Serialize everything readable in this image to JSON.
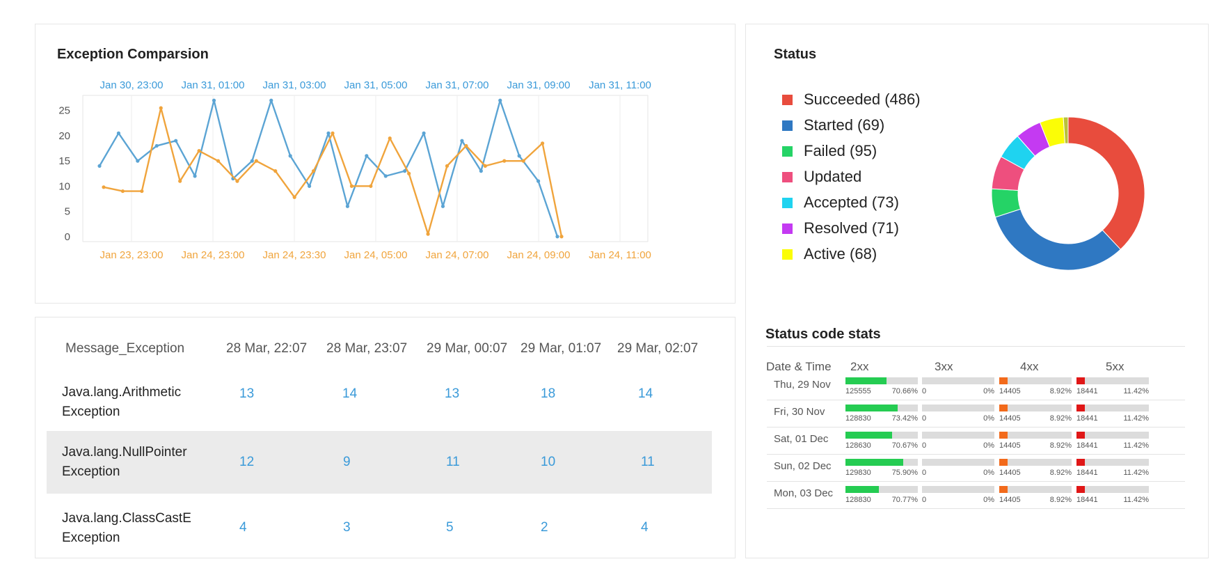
{
  "exception_chart": {
    "title": "Exception Comparsion",
    "chart_data": {
      "type": "line",
      "y_ticks": [
        0,
        5,
        10,
        15,
        20,
        25
      ],
      "ylim": [
        -1,
        28
      ],
      "top_x_ticks": [
        "Jan 30, 23:00",
        "Jan 31, 01:00",
        "Jan 31, 03:00",
        "Jan 31, 05:00",
        "Jan 31, 07:00",
        "Jan 31, 09:00",
        "Jan 31, 11:00"
      ],
      "bottom_x_ticks": [
        "Jan 23, 23:00",
        "Jan 24, 23:00",
        "Jan 24, 23:30",
        "Jan 24, 05:00",
        "Jan 24, 07:00",
        "Jan 24, 09:00",
        "Jan 24, 11:00"
      ],
      "series": [
        {
          "color": "#5ba4d4",
          "values": [
            14,
            20.5,
            15,
            18,
            19,
            12,
            27,
            11.5,
            15,
            27,
            16,
            10,
            20.5,
            6,
            16,
            12,
            13,
            20.5,
            6,
            19,
            13,
            27,
            16,
            11,
            0
          ]
        },
        {
          "color": "#f0a43c",
          "values": [
            9.8,
            9,
            9,
            25.5,
            11,
            17,
            15,
            11,
            15,
            13,
            7.8,
            13,
            20.5,
            10,
            10,
            19.5,
            12.5,
            0.5,
            14,
            18,
            14,
            15,
            15,
            18.5,
            0
          ]
        }
      ]
    }
  },
  "exception_table": {
    "headers": [
      "Message_Exception",
      "28 Mar, 22:07",
      "28 Mar, 23:07",
      "29 Mar, 00:07",
      "29 Mar, 01:07",
      "29 Mar, 02:07"
    ],
    "rows": [
      {
        "line1": "Java.lang.Arithmetic",
        "line2": "Exception",
        "values": [
          "13",
          "14",
          "13",
          "18",
          "14"
        ]
      },
      {
        "line1": "Java.lang.NullPointer",
        "line2": "Exception",
        "values": [
          "12",
          "9",
          "11",
          "10",
          "11"
        ]
      },
      {
        "line1": "Java.lang.ClassCastE",
        "line2": "Exception",
        "values": [
          "4",
          "3",
          "5",
          "2",
          "4"
        ]
      }
    ]
  },
  "status": {
    "title": "Status",
    "legend": [
      {
        "label": "Succeeded (486)",
        "color": "#e84c3d"
      },
      {
        "label": "Started (69)",
        "color": "#2f78c2"
      },
      {
        "label": "Failed (95)",
        "color": "#25d366"
      },
      {
        "label": "Updated",
        "color": "#ee4f7e"
      },
      {
        "label": "Accepted (73)",
        "color": "#1fd3f0"
      },
      {
        "label": "Resolved (71)",
        "color": "#c43af2"
      },
      {
        "label": "Active (68)",
        "color": "#fbfd06"
      }
    ],
    "chart_data": {
      "type": "pie",
      "donut": true,
      "slices": [
        {
          "color": "#e84c3d",
          "value": 38
        },
        {
          "color": "#2f78c2",
          "value": 32
        },
        {
          "color": "#25d366",
          "value": 6
        },
        {
          "color": "#ee4f7e",
          "value": 7
        },
        {
          "color": "#1fd3f0",
          "value": 5.5
        },
        {
          "color": "#c43af2",
          "value": 5.5
        },
        {
          "color": "#fbfd06",
          "value": 5
        },
        {
          "color": "#b8c23a",
          "value": 1
        }
      ]
    }
  },
  "status_codes": {
    "title": "Status code stats",
    "headers": [
      "Date & Time",
      "2xx",
      "3xx",
      "4xx",
      "5xx"
    ],
    "fill_colors": [
      "#25cc52",
      "#cccccc",
      "#f26a1b",
      "#e01717"
    ],
    "rows": [
      {
        "date": "Thu, 29 Nov",
        "cells": [
          {
            "num": "125555",
            "pct": "70.66%",
            "fill": 0.57
          },
          {
            "num": "0",
            "pct": "0%",
            "fill": 0
          },
          {
            "num": "14405",
            "pct": "8.92%",
            "fill": 0.12
          },
          {
            "num": "18441",
            "pct": "11.42%",
            "fill": 0.12
          }
        ]
      },
      {
        "date": "Fri, 30 Nov",
        "cells": [
          {
            "num": "128830",
            "pct": "73.42%",
            "fill": 0.72
          },
          {
            "num": "0",
            "pct": "0%",
            "fill": 0
          },
          {
            "num": "14405",
            "pct": "8.92%",
            "fill": 0.12
          },
          {
            "num": "18441",
            "pct": "11.42%",
            "fill": 0.12
          }
        ]
      },
      {
        "date": "Sat, 01 Dec",
        "cells": [
          {
            "num": "128630",
            "pct": "70.67%",
            "fill": 0.64
          },
          {
            "num": "0",
            "pct": "0%",
            "fill": 0
          },
          {
            "num": "14405",
            "pct": "8.92%",
            "fill": 0.12
          },
          {
            "num": "18441",
            "pct": "11.42%",
            "fill": 0.12
          }
        ]
      },
      {
        "date": "Sun, 02 Dec",
        "cells": [
          {
            "num": "129830",
            "pct": "75.90%",
            "fill": 0.8
          },
          {
            "num": "0",
            "pct": "0%",
            "fill": 0
          },
          {
            "num": "14405",
            "pct": "8.92%",
            "fill": 0.12
          },
          {
            "num": "18441",
            "pct": "11.42%",
            "fill": 0.12
          }
        ]
      },
      {
        "date": "Mon, 03 Dec",
        "cells": [
          {
            "num": "128830",
            "pct": "70.77%",
            "fill": 0.46
          },
          {
            "num": "0",
            "pct": "0%",
            "fill": 0
          },
          {
            "num": "14405",
            "pct": "8.92%",
            "fill": 0.12
          },
          {
            "num": "18441",
            "pct": "11.42%",
            "fill": 0.12
          }
        ]
      }
    ]
  }
}
